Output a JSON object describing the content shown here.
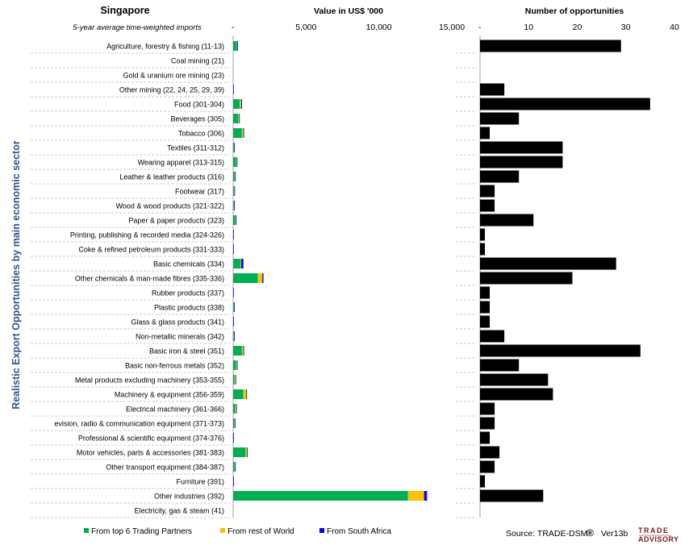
{
  "chart_data": [
    {
      "type": "bar",
      "orientation": "horizontal",
      "stacked": true,
      "title": "Singapore",
      "subtitle": "5-year average time-weighted imports",
      "xlabel": "Value in US$ '000",
      "ylabel": "Realistic Export Opportunities by main economic sector",
      "xlim": [
        0,
        15000
      ],
      "xticks": [
        "-",
        "5,000",
        "10,000",
        "15,000"
      ],
      "categories": [
        "Agriculture, forestry & fishing (11-13)",
        "Coal mining (21)",
        "Gold & uranium ore mining (23)",
        "Other mining (22, 24, 25, 29, 39)",
        "Food (301-304)",
        "Beverages (305)",
        "Tobacco (306)",
        "Textiles (311-312)",
        "Wearing apparel (313-315)",
        "Leather & leather products (316)",
        "Footwear (317)",
        "Wood & wood products (321-322)",
        "Paper & paper products (323)",
        "Printing, publishing & recorded media (324-326)",
        "Coke & refined petroleum products (331-333)",
        "Basic chemicals (334)",
        "Other chemicals & man-made fibres (335-336)",
        "Rubber products (337)",
        "Plastic products (338)",
        "Glass & glass products (341)",
        "Non-metallic minerals (342)",
        "Basic iron & steel (351)",
        "Basic non-ferrous metals (352)",
        "Metal products excluding machinery (353-355)",
        "Machinery & equipment (356-359)",
        "Electrical machinery (361-366)",
        "evision, radio & communication equipment (371-373)",
        "Professional & scientific equipment (374-376)",
        "Motor vehicles, parts & accessories (381-383)",
        "Other transport equipment (384-387)",
        "Furniture (391)",
        "Other industries (392)",
        "Electricity, gas & steam (41)"
      ],
      "series": [
        {
          "name": "From top 6 Trading Partners",
          "color": "#00b050",
          "values": [
            250,
            0,
            0,
            0,
            450,
            350,
            600,
            50,
            200,
            100,
            50,
            50,
            150,
            0,
            0,
            500,
            1700,
            0,
            50,
            0,
            50,
            600,
            200,
            100,
            700,
            150,
            80,
            0,
            850,
            100,
            0,
            12000,
            0
          ]
        },
        {
          "name": "From rest of World",
          "color": "#ffc000",
          "values": [
            30,
            0,
            0,
            0,
            100,
            60,
            100,
            20,
            50,
            30,
            30,
            20,
            40,
            0,
            0,
            50,
            300,
            0,
            20,
            10,
            20,
            100,
            60,
            60,
            200,
            60,
            30,
            10,
            100,
            30,
            10,
            1100,
            0
          ]
        },
        {
          "name": "From South Africa",
          "color": "#0000ff",
          "values": [
            50,
            0,
            0,
            30,
            60,
            30,
            50,
            30,
            40,
            30,
            20,
            20,
            30,
            10,
            10,
            150,
            80,
            10,
            20,
            10,
            20,
            50,
            30,
            30,
            50,
            30,
            30,
            10,
            50,
            20,
            10,
            200,
            0
          ]
        }
      ],
      "legend_position": "bottom"
    },
    {
      "type": "bar",
      "orientation": "horizontal",
      "title": "Number of opportunities",
      "xlim": [
        0,
        40
      ],
      "xticks": [
        "-",
        "10",
        "20",
        "30",
        "40"
      ],
      "series": [
        {
          "name": "",
          "color": "#000000",
          "values": [
            29,
            0,
            0,
            5,
            35,
            8,
            2,
            17,
            17,
            8,
            3,
            3,
            11,
            1,
            1,
            28,
            19,
            2,
            2,
            2,
            5,
            33,
            8,
            14,
            15,
            3,
            3,
            2,
            4,
            3,
            1,
            13,
            0
          ]
        }
      ]
    }
  ],
  "legend": [
    {
      "label": "From top 6 Trading Partners",
      "color": "#00b050"
    },
    {
      "label": "From rest of World",
      "color": "#ffc000"
    },
    {
      "label": "From South Africa",
      "color": "#0000ff"
    }
  ],
  "footer": {
    "source": "Source: TRADE-DSM",
    "registered": "®",
    "version": "Ver13b",
    "logo_line1": "TRADE",
    "logo_line2": "ADVISORY"
  }
}
